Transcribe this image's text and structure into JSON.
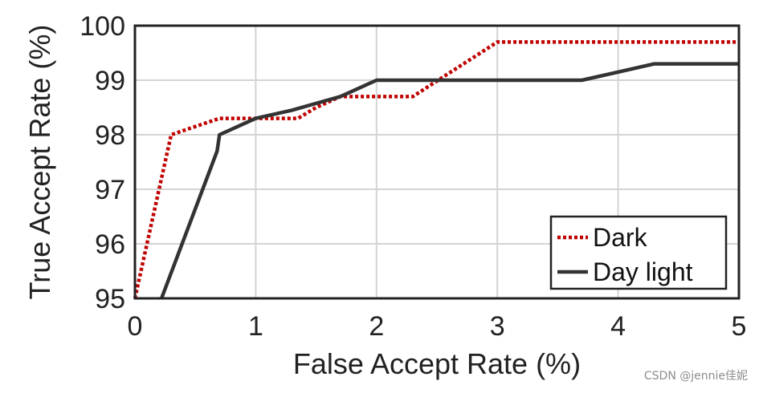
{
  "chart_data": {
    "type": "line",
    "xlabel": "False Accept Rate (%)",
    "ylabel": "True Accept Rate (%)",
    "xlim": [
      0,
      5
    ],
    "ylim": [
      95,
      100
    ],
    "xticks": [
      "0",
      "1",
      "2",
      "3",
      "4",
      "5"
    ],
    "yticks": [
      "95",
      "96",
      "97",
      "98",
      "99",
      "100"
    ],
    "grid": true,
    "legend_position": "bottom-right",
    "series": [
      {
        "name": "Dark",
        "style": "dotted",
        "color": "#c00000",
        "x": [
          0,
          0.1,
          0.3,
          0.7,
          1.0,
          1.35,
          1.5,
          1.7,
          2.3,
          3.0,
          5.0
        ],
        "y": [
          95.0,
          96.0,
          98.0,
          98.3,
          98.3,
          98.3,
          98.5,
          98.7,
          98.7,
          99.7,
          99.7
        ]
      },
      {
        "name": "Day light",
        "style": "solid",
        "color": "#333333",
        "x": [
          0.22,
          0.68,
          0.7,
          1.0,
          1.3,
          1.7,
          2.0,
          3.7,
          4.3,
          5.0
        ],
        "y": [
          95.0,
          97.7,
          98.0,
          98.3,
          98.45,
          98.7,
          99.0,
          99.0,
          99.3,
          99.3
        ]
      }
    ]
  },
  "watermark": "CSDN @jennie佳妮"
}
